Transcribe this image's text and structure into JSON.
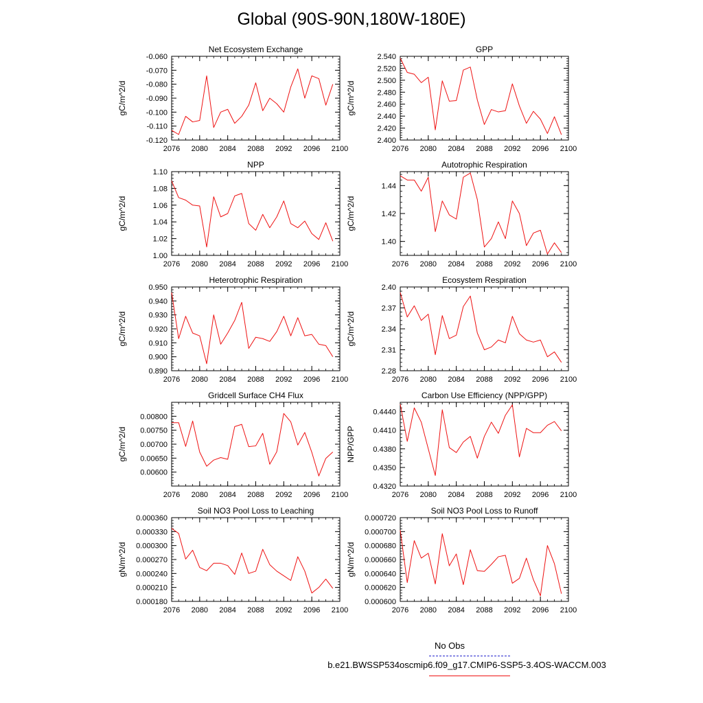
{
  "page": {
    "title": "Global (90S-90N,180W-180E)"
  },
  "legend": {
    "obs_label": "No Obs",
    "case_label": "b.e21.BWSSP534oscmip6.f09_g17.CMIP6-SSP5-3.4OS-WACCM.003",
    "obs_color": "#2222cc",
    "case_color": "#ee1111"
  },
  "chart_data": [
    {
      "type": "line",
      "title": "Net Ecosystem Exchange",
      "xlabel": "",
      "ylabel": "gC/m^2/d",
      "x": [
        2076,
        2077,
        2078,
        2079,
        2080,
        2081,
        2082,
        2083,
        2084,
        2085,
        2086,
        2087,
        2088,
        2089,
        2090,
        2091,
        2092,
        2093,
        2094,
        2095,
        2096,
        2097,
        2098,
        2099
      ],
      "xlim": [
        2076,
        2100
      ],
      "xticks": [
        2076,
        2080,
        2084,
        2088,
        2092,
        2096,
        2100
      ],
      "ylim": [
        -0.12,
        -0.06
      ],
      "yticks": [
        -0.12,
        -0.11,
        -0.1,
        -0.09,
        -0.08,
        -0.07,
        -0.06
      ],
      "ydecimals": 3,
      "series": [
        {
          "name": "case",
          "color": "#ee1111",
          "values": [
            -0.113,
            -0.116,
            -0.103,
            -0.107,
            -0.106,
            -0.074,
            -0.111,
            -0.1,
            -0.098,
            -0.108,
            -0.103,
            -0.095,
            -0.079,
            -0.099,
            -0.09,
            -0.094,
            -0.1,
            -0.082,
            -0.069,
            -0.09,
            -0.074,
            -0.076,
            -0.095,
            -0.08
          ]
        }
      ]
    },
    {
      "type": "line",
      "title": "GPP",
      "xlabel": "",
      "ylabel": "gC/m^2/d",
      "x": [
        2076,
        2077,
        2078,
        2079,
        2080,
        2081,
        2082,
        2083,
        2084,
        2085,
        2086,
        2087,
        2088,
        2089,
        2090,
        2091,
        2092,
        2093,
        2094,
        2095,
        2096,
        2097,
        2098,
        2099
      ],
      "xlim": [
        2076,
        2100
      ],
      "xticks": [
        2076,
        2080,
        2084,
        2088,
        2092,
        2096,
        2100
      ],
      "ylim": [
        2.4,
        2.54
      ],
      "yticks": [
        2.4,
        2.42,
        2.44,
        2.46,
        2.48,
        2.5,
        2.52,
        2.54
      ],
      "ydecimals": 3,
      "series": [
        {
          "name": "case",
          "color": "#ee1111",
          "values": [
            2.537,
            2.513,
            2.51,
            2.496,
            2.505,
            2.417,
            2.499,
            2.465,
            2.466,
            2.517,
            2.522,
            2.467,
            2.426,
            2.451,
            2.447,
            2.449,
            2.494,
            2.457,
            2.428,
            2.448,
            2.435,
            2.411,
            2.439,
            2.409
          ]
        }
      ]
    },
    {
      "type": "line",
      "title": "NPP",
      "xlabel": "",
      "ylabel": "gC/m^2/d",
      "x": [
        2076,
        2077,
        2078,
        2079,
        2080,
        2081,
        2082,
        2083,
        2084,
        2085,
        2086,
        2087,
        2088,
        2089,
        2090,
        2091,
        2092,
        2093,
        2094,
        2095,
        2096,
        2097,
        2098,
        2099
      ],
      "xlim": [
        2076,
        2100
      ],
      "xticks": [
        2076,
        2080,
        2084,
        2088,
        2092,
        2096,
        2100
      ],
      "ylim": [
        1.0,
        1.1
      ],
      "yticks": [
        1.0,
        1.02,
        1.04,
        1.06,
        1.08,
        1.1
      ],
      "ydecimals": 2,
      "series": [
        {
          "name": "case",
          "color": "#ee1111",
          "values": [
            1.089,
            1.069,
            1.066,
            1.06,
            1.059,
            1.01,
            1.07,
            1.046,
            1.05,
            1.071,
            1.074,
            1.038,
            1.03,
            1.049,
            1.033,
            1.046,
            1.065,
            1.038,
            1.033,
            1.041,
            1.026,
            1.019,
            1.039,
            1.017
          ]
        }
      ]
    },
    {
      "type": "line",
      "title": "Autotrophic Respiration",
      "xlabel": "",
      "ylabel": "gC/m^2/d",
      "x": [
        2076,
        2077,
        2078,
        2079,
        2080,
        2081,
        2082,
        2083,
        2084,
        2085,
        2086,
        2087,
        2088,
        2089,
        2090,
        2091,
        2092,
        2093,
        2094,
        2095,
        2096,
        2097,
        2098,
        2099
      ],
      "xlim": [
        2076,
        2100
      ],
      "xticks": [
        2076,
        2080,
        2084,
        2088,
        2092,
        2096,
        2100
      ],
      "ylim": [
        1.39,
        1.45
      ],
      "yticks": [
        1.4,
        1.42,
        1.44
      ],
      "ydecimals": 2,
      "series": [
        {
          "name": "case",
          "color": "#ee1111",
          "values": [
            1.447,
            1.444,
            1.444,
            1.436,
            1.446,
            1.407,
            1.429,
            1.419,
            1.416,
            1.446,
            1.449,
            1.43,
            1.396,
            1.402,
            1.414,
            1.402,
            1.429,
            1.42,
            1.397,
            1.406,
            1.408,
            1.391,
            1.399,
            1.392
          ]
        }
      ]
    },
    {
      "type": "line",
      "title": "Heterotrophic Respiration",
      "xlabel": "",
      "ylabel": "gC/m^2/d",
      "x": [
        2076,
        2077,
        2078,
        2079,
        2080,
        2081,
        2082,
        2083,
        2084,
        2085,
        2086,
        2087,
        2088,
        2089,
        2090,
        2091,
        2092,
        2093,
        2094,
        2095,
        2096,
        2097,
        2098,
        2099
      ],
      "xlim": [
        2076,
        2100
      ],
      "xticks": [
        2076,
        2080,
        2084,
        2088,
        2092,
        2096,
        2100
      ],
      "ylim": [
        0.89,
        0.95
      ],
      "yticks": [
        0.89,
        0.9,
        0.91,
        0.92,
        0.93,
        0.94,
        0.95
      ],
      "ydecimals": 3,
      "series": [
        {
          "name": "case",
          "color": "#ee1111",
          "values": [
            0.946,
            0.913,
            0.929,
            0.917,
            0.915,
            0.895,
            0.93,
            0.909,
            0.917,
            0.926,
            0.939,
            0.906,
            0.914,
            0.913,
            0.911,
            0.918,
            0.929,
            0.915,
            0.928,
            0.915,
            0.916,
            0.909,
            0.908,
            0.9
          ]
        }
      ]
    },
    {
      "type": "line",
      "title": "Ecosystem Respiration",
      "xlabel": "",
      "ylabel": "gC/m^2/d",
      "x": [
        2076,
        2077,
        2078,
        2079,
        2080,
        2081,
        2082,
        2083,
        2084,
        2085,
        2086,
        2087,
        2088,
        2089,
        2090,
        2091,
        2092,
        2093,
        2094,
        2095,
        2096,
        2097,
        2098,
        2099
      ],
      "xlim": [
        2076,
        2100
      ],
      "xticks": [
        2076,
        2080,
        2084,
        2088,
        2092,
        2096,
        2100
      ],
      "ylim": [
        2.28,
        2.4
      ],
      "yticks": [
        2.28,
        2.31,
        2.34,
        2.37,
        2.4
      ],
      "ydecimals": 2,
      "series": [
        {
          "name": "case",
          "color": "#ee1111",
          "values": [
            2.392,
            2.357,
            2.373,
            2.352,
            2.361,
            2.303,
            2.359,
            2.326,
            2.331,
            2.372,
            2.387,
            2.334,
            2.31,
            2.314,
            2.324,
            2.32,
            2.358,
            2.333,
            2.324,
            2.321,
            2.324,
            2.3,
            2.307,
            2.292
          ]
        }
      ]
    },
    {
      "type": "line",
      "title": "Gridcell Surface CH4 Flux",
      "xlabel": "",
      "ylabel": "gC/m^2/d",
      "x": [
        2076,
        2077,
        2078,
        2079,
        2080,
        2081,
        2082,
        2083,
        2084,
        2085,
        2086,
        2087,
        2088,
        2089,
        2090,
        2091,
        2092,
        2093,
        2094,
        2095,
        2096,
        2097,
        2098,
        2099
      ],
      "xlim": [
        2076,
        2100
      ],
      "xticks": [
        2076,
        2080,
        2084,
        2088,
        2092,
        2096,
        2100
      ],
      "ylim": [
        0.0055,
        0.0085
      ],
      "yticks": [
        0.006,
        0.0065,
        0.007,
        0.0075,
        0.008
      ],
      "ydecimals": 5,
      "series": [
        {
          "name": "case",
          "color": "#ee1111",
          "values": [
            0.00777,
            0.00777,
            0.00692,
            0.00783,
            0.00672,
            0.00621,
            0.00643,
            0.00652,
            0.00646,
            0.00763,
            0.00771,
            0.00691,
            0.00694,
            0.00739,
            0.00628,
            0.00673,
            0.0081,
            0.0078,
            0.00697,
            0.00742,
            0.00671,
            0.00586,
            0.00649,
            0.00672
          ]
        }
      ]
    },
    {
      "type": "line",
      "title": "Carbon Use Efficiency (NPP/GPP)",
      "xlabel": "",
      "ylabel": "NPP/GPP",
      "x": [
        2076,
        2077,
        2078,
        2079,
        2080,
        2081,
        2082,
        2083,
        2084,
        2085,
        2086,
        2087,
        2088,
        2089,
        2090,
        2091,
        2092,
        2093,
        2094,
        2095,
        2096,
        2097,
        2098,
        2099
      ],
      "xlim": [
        2076,
        2100
      ],
      "xticks": [
        2076,
        2080,
        2084,
        2088,
        2092,
        2096,
        2100
      ],
      "ylim": [
        0.432,
        0.4455
      ],
      "yticks": [
        0.432,
        0.435,
        0.438,
        0.441,
        0.444
      ],
      "ydecimals": 4,
      "series": [
        {
          "name": "case",
          "color": "#ee1111",
          "values": [
            0.4452,
            0.4392,
            0.4446,
            0.4423,
            0.438,
            0.4337,
            0.4443,
            0.4382,
            0.4374,
            0.4391,
            0.44,
            0.4365,
            0.44,
            0.4423,
            0.4405,
            0.4434,
            0.4451,
            0.4367,
            0.4413,
            0.4406,
            0.4406,
            0.4418,
            0.4424,
            0.4409
          ]
        }
      ]
    },
    {
      "type": "line",
      "title": "Soil NO3 Pool Loss to Leaching",
      "xlabel": "",
      "ylabel": "gN/m^2/d",
      "x": [
        2076,
        2077,
        2078,
        2079,
        2080,
        2081,
        2082,
        2083,
        2084,
        2085,
        2086,
        2087,
        2088,
        2089,
        2090,
        2091,
        2092,
        2093,
        2094,
        2095,
        2096,
        2097,
        2098,
        2099
      ],
      "xlim": [
        2076,
        2100
      ],
      "xticks": [
        2076,
        2080,
        2084,
        2088,
        2092,
        2096,
        2100
      ],
      "ylim": [
        0.00018,
        0.00036
      ],
      "yticks": [
        0.00018,
        0.00021,
        0.00024,
        0.00027,
        0.0003,
        0.00033,
        0.00036
      ],
      "ydecimals": 6,
      "series": [
        {
          "name": "case",
          "color": "#ee1111",
          "values": [
            0.000337,
            0.000326,
            0.000271,
            0.00029,
            0.000253,
            0.000246,
            0.000262,
            0.000262,
            0.000257,
            0.000238,
            0.000284,
            0.00024,
            0.000245,
            0.000292,
            0.000259,
            0.000245,
            0.000235,
            0.000225,
            0.000276,
            0.000245,
            0.000198,
            0.00021,
            0.000228,
            0.000208
          ]
        }
      ]
    },
    {
      "type": "line",
      "title": "Soil NO3 Pool Loss to Runoff",
      "xlabel": "",
      "ylabel": "gN/m^2/d",
      "x": [
        2076,
        2077,
        2078,
        2079,
        2080,
        2081,
        2082,
        2083,
        2084,
        2085,
        2086,
        2087,
        2088,
        2089,
        2090,
        2091,
        2092,
        2093,
        2094,
        2095,
        2096,
        2097,
        2098,
        2099
      ],
      "xlim": [
        2076,
        2100
      ],
      "xticks": [
        2076,
        2080,
        2084,
        2088,
        2092,
        2096,
        2100
      ],
      "ylim": [
        0.0006,
        0.00072
      ],
      "yticks": [
        0.0006,
        0.00062,
        0.00064,
        0.00066,
        0.00068,
        0.0007,
        0.00072
      ],
      "ydecimals": 6,
      "series": [
        {
          "name": "case",
          "color": "#ee1111",
          "values": [
            0.000702,
            0.000627,
            0.000687,
            0.000662,
            0.000669,
            0.000625,
            0.000697,
            0.000651,
            0.000668,
            0.000624,
            0.000674,
            0.000644,
            0.000643,
            0.000653,
            0.000664,
            0.000666,
            0.000626,
            0.000633,
            0.000662,
            0.000631,
            0.000608,
            0.00068,
            0.000654,
            0.000611
          ]
        }
      ]
    }
  ]
}
